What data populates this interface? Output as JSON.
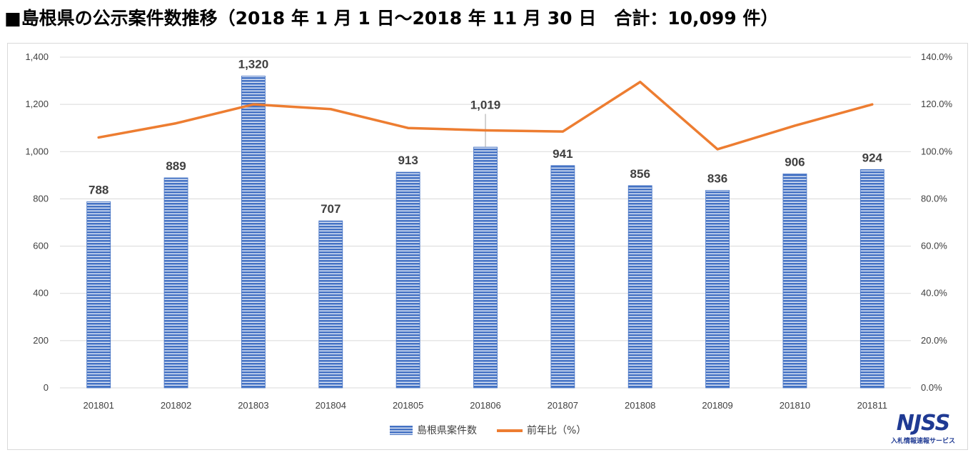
{
  "title": "■島根県の公示案件数推移（2018 年 1 月 1 日～2018 年 11 月 30 日　合計：10,099 件）",
  "logo": {
    "main": "NJSS",
    "sub": "入札情報速報サービス"
  },
  "colors": {
    "bar": "#4472c4",
    "bar_stripe": "#ffffff",
    "line": "#ed7d31",
    "grid": "#d9d9d9",
    "axis_text": "#404040"
  },
  "chart_data": {
    "type": "bar",
    "categories": [
      "201801",
      "201802",
      "201803",
      "201804",
      "201805",
      "201806",
      "201807",
      "201808",
      "201809",
      "201810",
      "201811"
    ],
    "series": [
      {
        "name": "島根県案件数",
        "type": "bar",
        "axis": "left",
        "values": [
          788,
          889,
          1320,
          707,
          913,
          1019,
          941,
          856,
          836,
          906,
          924
        ],
        "labels": [
          "788",
          "889",
          "1,320",
          "707",
          "913",
          "1,019",
          "941",
          "856",
          "836",
          "906",
          "924"
        ]
      },
      {
        "name": "前年比（%）",
        "type": "line",
        "axis": "right",
        "values": [
          106.0,
          112.0,
          120.0,
          118.0,
          110.0,
          109.0,
          108.5,
          129.5,
          101.0,
          111.0,
          120.0
        ]
      }
    ],
    "y_left": {
      "ylim": [
        0,
        1400
      ],
      "ticks": [
        "0",
        "200",
        "400",
        "600",
        "800",
        "1,000",
        "1,200",
        "1,400"
      ]
    },
    "y_right": {
      "ylim": [
        0,
        140
      ],
      "ticks": [
        "0.0%",
        "20.0%",
        "40.0%",
        "60.0%",
        "80.0%",
        "100.0%",
        "120.0%",
        "140.0%"
      ]
    },
    "grid": true,
    "legend_position": "bottom"
  }
}
